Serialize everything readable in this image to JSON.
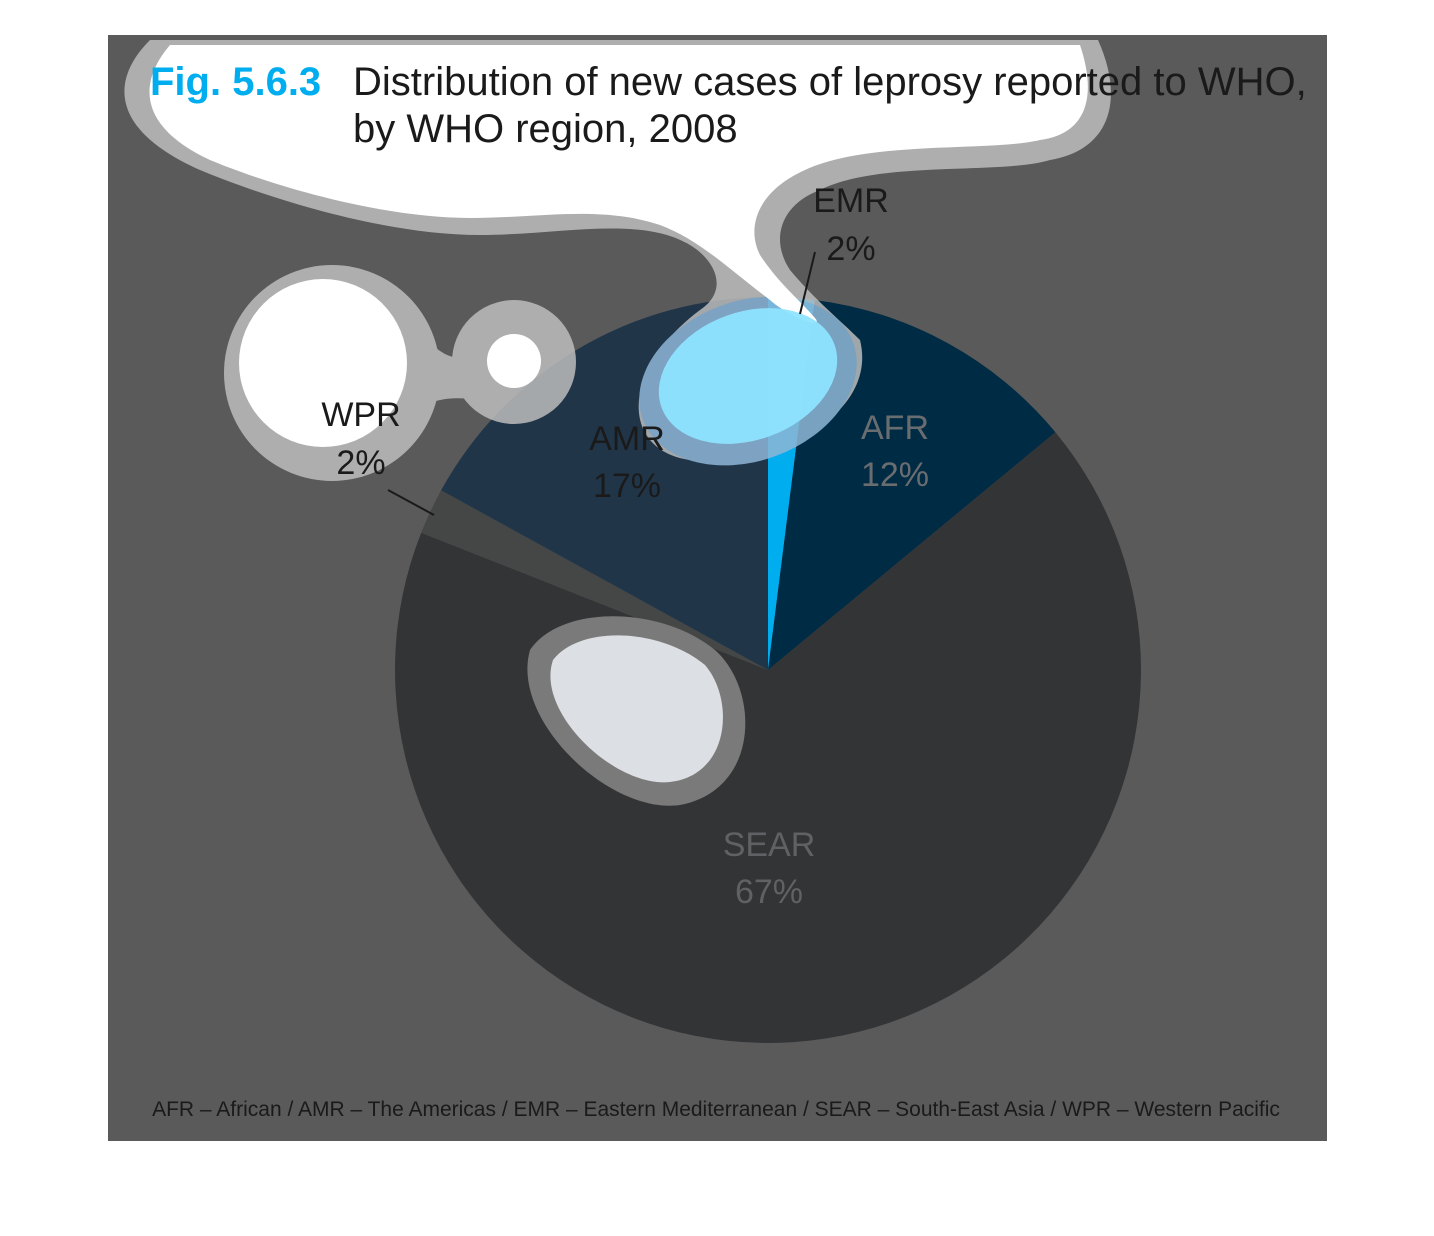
{
  "figure": {
    "number": "Fig. 5.6.3",
    "title_line1": "Distribution of new cases of leprosy reported to WHO,",
    "title_line2": "by WHO region, 2008",
    "footnote": "AFR – African / AMR – The Americas / EMR – Eastern Mediterranean / SEAR – South-East Asia / WPR – Western Pacific"
  },
  "colors": {
    "background_panel": "#5a5a5a",
    "accent_blue": "#00aeef",
    "cloud_fill": "#ffffff",
    "cloud_outline": "#bdbdbd"
  },
  "chart_data": {
    "type": "pie",
    "title": "Distribution of new cases of leprosy reported to WHO, by WHO region, 2008",
    "unit": "%",
    "slices": [
      {
        "label": "EMR",
        "value": 2,
        "value_label": "2%",
        "color": "#00aeef"
      },
      {
        "label": "AFR",
        "value": 12,
        "value_label": "12%",
        "color": "#002b44"
      },
      {
        "label": "SEAR",
        "value": 67,
        "value_label": "67%",
        "color": "#333436"
      },
      {
        "label": "WPR",
        "value": 2,
        "value_label": "2%",
        "color": "#444746"
      },
      {
        "label": "AMR",
        "value": 17,
        "value_label": "17%",
        "color": "#213549"
      }
    ],
    "legend": "bottom"
  }
}
